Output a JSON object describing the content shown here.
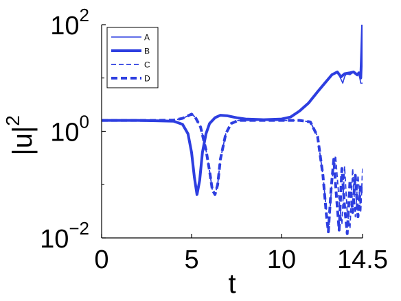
{
  "chart_data": {
    "type": "line",
    "xlabel": "t",
    "ylabel_base": "|u|",
    "ylabel_exp": "2",
    "xlim": [
      0,
      14.5
    ],
    "ylim": [
      0.01,
      100
    ],
    "y_scale": "log",
    "grid": false,
    "legend_position": "top-left",
    "x_ticks": [
      {
        "value": 0,
        "label": "0"
      },
      {
        "value": 5,
        "label": "5"
      },
      {
        "value": 10,
        "label": "10"
      },
      {
        "value": 14.5,
        "label": "14.5"
      }
    ],
    "y_ticks": [
      {
        "value": 0.01,
        "base": "10",
        "exp": "−2"
      },
      {
        "value": 1,
        "base": "10",
        "exp": "0"
      },
      {
        "value": 100,
        "base": "10",
        "exp": "2"
      }
    ],
    "color": "#2d3ee0",
    "series": [
      {
        "name": "A",
        "style": "solid-thin",
        "x": [
          0,
          1,
          2,
          3,
          4,
          4.5,
          4.8,
          5.0,
          5.15,
          5.3,
          5.45,
          5.6,
          5.8,
          6.0,
          6.3,
          6.6,
          7.0,
          7.5,
          8,
          9,
          10,
          10.5,
          11,
          11.5,
          12,
          12.4,
          12.8,
          13.1,
          13.3,
          13.4,
          13.5,
          13.6,
          13.8,
          14.0,
          14.2,
          14.3,
          14.4,
          14.5
        ],
        "y": [
          1.6,
          1.6,
          1.6,
          1.58,
          1.55,
          1.35,
          0.9,
          0.4,
          0.14,
          0.065,
          0.12,
          0.4,
          0.9,
          1.4,
          1.8,
          2.0,
          1.95,
          1.8,
          1.7,
          1.65,
          1.7,
          1.85,
          2.4,
          3.4,
          5.5,
          8.0,
          11.5,
          13.0,
          9.5,
          8.0,
          10.5,
          12.0,
          11.5,
          13.0,
          11.0,
          12.0,
          8.0,
          8.0
        ]
      },
      {
        "name": "B",
        "style": "solid-thick",
        "x": [
          0,
          1,
          2,
          3,
          4,
          4.5,
          4.8,
          5.0,
          5.15,
          5.3,
          5.45,
          5.6,
          5.8,
          6.0,
          6.3,
          6.6,
          7.0,
          7.5,
          8,
          9,
          10,
          10.5,
          11,
          11.5,
          12,
          12.4,
          12.8,
          13.1,
          13.3,
          13.5,
          13.8,
          14.0,
          14.2,
          14.3,
          14.4,
          14.45,
          14.5
        ],
        "y": [
          1.6,
          1.6,
          1.6,
          1.58,
          1.55,
          1.35,
          0.9,
          0.4,
          0.14,
          0.065,
          0.12,
          0.4,
          0.9,
          1.4,
          1.8,
          2.0,
          1.95,
          1.8,
          1.7,
          1.65,
          1.7,
          1.85,
          2.4,
          3.4,
          5.5,
          8.0,
          11.5,
          13.0,
          10.5,
          12.0,
          12.5,
          13.0,
          11.5,
          12.5,
          10.0,
          30.0,
          100.0
        ]
      },
      {
        "name": "C",
        "style": "dashed-thin",
        "x": [
          0,
          1,
          2,
          3,
          4,
          4.5,
          4.8,
          5.0,
          5.2,
          5.5,
          5.8,
          6.0,
          6.15,
          6.3,
          6.45,
          6.6,
          6.9,
          7.2,
          7.6,
          8,
          9,
          10,
          11,
          11.6,
          12.0,
          12.3,
          12.5,
          12.65,
          12.8,
          13.0,
          13.2,
          13.35,
          13.5,
          13.65,
          13.8,
          13.95,
          14.1,
          14.25,
          14.4,
          14.5
        ],
        "y": [
          1.6,
          1.6,
          1.6,
          1.6,
          1.62,
          1.75,
          1.95,
          2.1,
          1.85,
          1.2,
          0.45,
          0.18,
          0.08,
          0.065,
          0.1,
          0.3,
          0.9,
          1.4,
          1.6,
          1.6,
          1.6,
          1.6,
          1.6,
          1.5,
          0.8,
          0.15,
          0.03,
          0.018,
          0.12,
          0.35,
          0.05,
          0.018,
          0.22,
          0.03,
          0.015,
          0.2,
          0.025,
          0.15,
          0.03,
          0.2
        ]
      },
      {
        "name": "D",
        "style": "dashed-thick",
        "x": [
          0,
          1,
          2,
          3,
          4,
          4.5,
          4.8,
          5.0,
          5.2,
          5.5,
          5.8,
          6.0,
          6.15,
          6.3,
          6.45,
          6.6,
          6.9,
          7.2,
          7.6,
          8,
          9,
          10,
          11,
          11.6,
          12.0,
          12.3,
          12.5,
          12.6,
          12.75,
          12.9,
          13.05,
          13.2,
          13.35,
          13.5,
          13.65,
          13.8,
          13.95,
          14.1,
          14.25,
          14.4,
          14.5
        ],
        "y": [
          1.6,
          1.6,
          1.6,
          1.6,
          1.62,
          1.75,
          1.95,
          2.1,
          1.85,
          1.2,
          0.45,
          0.18,
          0.08,
          0.065,
          0.1,
          0.3,
          0.9,
          1.4,
          1.6,
          1.6,
          1.6,
          1.6,
          1.6,
          1.5,
          0.8,
          0.15,
          0.025,
          0.013,
          0.08,
          0.3,
          0.06,
          0.014,
          0.2,
          0.04,
          0.012,
          0.12,
          0.03,
          0.15,
          0.025,
          0.1,
          0.06
        ]
      }
    ]
  }
}
